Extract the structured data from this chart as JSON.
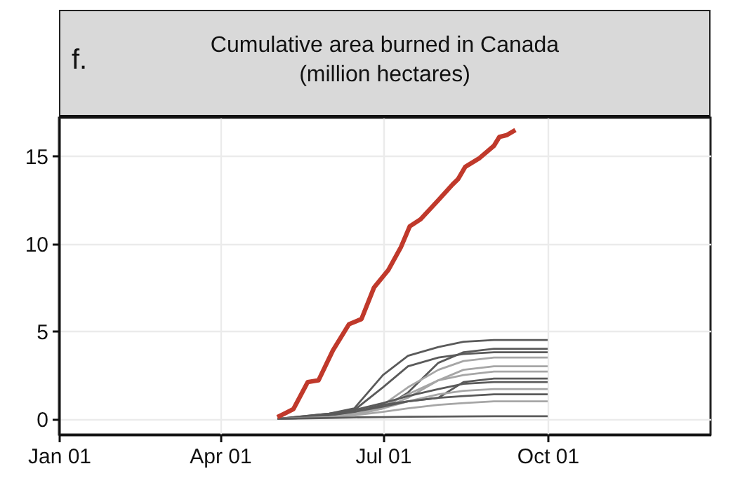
{
  "chart_data": {
    "type": "line",
    "title": "Cumulative area burned in Canada",
    "subtitle": "(million hectares)",
    "annotations": [
      "f."
    ],
    "grid": true,
    "x": [
      "--05-03",
      "--06-01",
      "--06-15",
      "--07-01",
      "--07-15",
      "--08-01",
      "--08-15",
      "--09-01",
      "--10-01"
    ],
    "xlim": [
      "--01-01",
      "--12-31"
    ],
    "xticks": [
      {
        "value": "--01-01",
        "label": "Jan 01"
      },
      {
        "value": "--04-01",
        "label": "Apr 01"
      },
      {
        "value": "--07-01",
        "label": "Jul 01"
      },
      {
        "value": "--10-01",
        "label": "Oct 01"
      }
    ],
    "ylim": [
      -0.9,
      17.2
    ],
    "yticks": [
      0,
      5,
      10,
      15
    ],
    "series": [
      {
        "color": "#5a5a5a",
        "values": [
          0,
          0.3,
          0.6,
          2.5,
          3.6,
          4.1,
          4.4,
          4.5,
          4.5
        ]
      },
      {
        "color": "#5a5a5a",
        "values": [
          0,
          0.2,
          0.4,
          0.6,
          1.5,
          3.2,
          3.8,
          4.0,
          4.0
        ]
      },
      {
        "color": "#5a5a5a",
        "values": [
          0,
          0.2,
          0.5,
          1.8,
          3.0,
          3.5,
          3.7,
          3.8,
          3.8
        ]
      },
      {
        "color": "#a6a6a6",
        "values": [
          0,
          0.1,
          0.3,
          0.8,
          1.8,
          2.8,
          3.3,
          3.5,
          3.5
        ]
      },
      {
        "color": "#a6a6a6",
        "values": [
          0,
          0.1,
          0.2,
          0.6,
          1.2,
          2.2,
          2.8,
          3.0,
          3.0
        ]
      },
      {
        "color": "#a6a6a6",
        "values": [
          0,
          0.1,
          0.3,
          0.7,
          1.4,
          2.2,
          2.5,
          2.7,
          2.7
        ]
      },
      {
        "color": "#5a5a5a",
        "values": [
          0,
          0.2,
          0.4,
          0.8,
          1.0,
          1.2,
          2.1,
          2.3,
          2.3
        ]
      },
      {
        "color": "#5a5a5a",
        "values": [
          0,
          0.3,
          0.5,
          0.9,
          1.3,
          1.7,
          2.0,
          2.1,
          2.1
        ]
      },
      {
        "color": "#a6a6a6",
        "values": [
          0,
          0.1,
          0.3,
          0.6,
          1.0,
          1.4,
          1.6,
          1.7,
          1.7
        ]
      },
      {
        "color": "#5a5a5a",
        "values": [
          0,
          0.2,
          0.4,
          0.7,
          1.0,
          1.2,
          1.3,
          1.4,
          1.4
        ]
      },
      {
        "color": "#a6a6a6",
        "values": [
          0,
          0.1,
          0.2,
          0.4,
          0.6,
          0.8,
          0.9,
          1.0,
          1.0
        ]
      },
      {
        "color": "#5a5a5a",
        "values": [
          0,
          0.05,
          0.08,
          0.1,
          0.12,
          0.13,
          0.14,
          0.15,
          0.15
        ]
      },
      {
        "color": "#c0392b",
        "x": [
          "--05-03",
          "--05-07",
          "--05-12",
          "--05-20",
          "--05-26",
          "--06-03",
          "--06-12",
          "--06-19",
          "--06-26",
          "--07-04",
          "--07-11",
          "--07-16",
          "--07-22",
          "--08-01",
          "--08-09",
          "--08-12",
          "--08-16",
          "--08-24",
          "--09-01",
          "--09-04",
          "--09-08",
          "--09-13"
        ],
        "values": [
          0.1,
          0.3,
          0.56,
          2.1,
          2.2,
          3.9,
          5.4,
          5.7,
          7.5,
          8.5,
          9.8,
          11.0,
          11.4,
          12.5,
          13.4,
          13.7,
          14.4,
          14.9,
          15.6,
          16.1,
          16.2,
          16.5
        ]
      }
    ]
  }
}
